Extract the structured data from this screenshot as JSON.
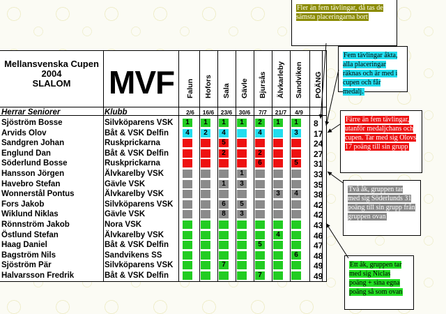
{
  "title_lines": [
    "Mellansvenska Cupen",
    "2004",
    "SLALOM"
  ],
  "logo": "MVF",
  "columns": [
    "Falun",
    "Hofors",
    "Sala",
    "Gävle",
    "Bjursås",
    "Älvkarleby",
    "Sandviken",
    "POÄNG"
  ],
  "subheader": {
    "class_label": "Herrar Seniorer",
    "club_label": "Klubb",
    "dates": [
      "2/6",
      "16/6",
      "23/6",
      "30/6",
      "7/7",
      "21/7",
      "4/9"
    ]
  },
  "colors": {
    "green": "#22cc22",
    "cyan": "#22ddee",
    "red": "#ee1111",
    "gray": "#8a8a8a",
    "olive": "#8b8b00",
    "yellow_bg": "#ffffcc"
  },
  "rows": [
    {
      "name": "Sjöström Bosse",
      "club": "Silvköparens VSK",
      "color": "green",
      "marks": [
        "1",
        "1",
        "1",
        "1",
        "2",
        "1",
        "1"
      ],
      "points": "8"
    },
    {
      "name": "Arvids Olov",
      "club": "Båt & VSK Delfin",
      "color": "cyan",
      "marks": [
        "4",
        "2",
        "4",
        "",
        "4",
        "",
        "3"
      ],
      "points": "17"
    },
    {
      "name": "Sandgren Johan",
      "club": "Ruskprickarna",
      "color": "red",
      "marks": [
        "",
        "",
        "5",
        "",
        "",
        "",
        ""
      ],
      "points": "24"
    },
    {
      "name": "Englund Dan",
      "club": "Båt & VSK Delfin",
      "color": "red",
      "marks": [
        "",
        "",
        "2",
        "",
        "2",
        "",
        ""
      ],
      "points": "27"
    },
    {
      "name": "Söderlund Bosse",
      "club": "Ruskprickarna",
      "color": "red",
      "marks": [
        "",
        "",
        "",
        "",
        "6",
        "",
        "5"
      ],
      "points": "31"
    },
    {
      "name": "Hansson Jörgen",
      "club": "Älvkarelby VSK",
      "color": "gray",
      "marks": [
        "",
        "",
        "",
        "1",
        "",
        "",
        ""
      ],
      "points": "33"
    },
    {
      "name": "Havebro Stefan",
      "club": "Gävle VSK",
      "color": "gray",
      "marks": [
        "",
        "",
        "1",
        "3",
        "",
        "",
        ""
      ],
      "points": "35"
    },
    {
      "name": "Wonnerstål Pontus",
      "club": "Älvkarelby VSK",
      "color": "gray",
      "marks": [
        "",
        "",
        "",
        "",
        "",
        "3",
        "4"
      ],
      "points": "38"
    },
    {
      "name": "Fors Jakob",
      "club": "Silvköparens VSK",
      "color": "gray",
      "marks": [
        "",
        "",
        "6",
        "5",
        "",
        "",
        ""
      ],
      "points": "42"
    },
    {
      "name": "Wiklund Niklas",
      "club": "Gävle VSK",
      "color": "gray",
      "marks": [
        "",
        "",
        "8",
        "3",
        "",
        "",
        ""
      ],
      "points": "42"
    },
    {
      "name": "Rönnström Jakob",
      "club": "Nora VSK",
      "color": "green",
      "marks": [
        "",
        "",
        "",
        "",
        "",
        "",
        ""
      ],
      "points": "43"
    },
    {
      "name": "Östlund Stefan",
      "club": "Älvkarelby VSK",
      "color": "green",
      "marks": [
        "",
        "",
        "",
        "",
        "",
        "4",
        ""
      ],
      "points": "46"
    },
    {
      "name": "Haag Daniel",
      "club": "Båt & VSK Delfin",
      "color": "green",
      "marks": [
        "",
        "",
        "",
        "",
        "5",
        "",
        ""
      ],
      "points": "47"
    },
    {
      "name": "Bagström Nils",
      "club": "Sandvikens SS",
      "color": "green",
      "marks": [
        "",
        "",
        "",
        "",
        "",
        "",
        "6"
      ],
      "points": "48"
    },
    {
      "name": "Sjöström Pär",
      "club": "Silvköparens VSK",
      "color": "green",
      "marks": [
        "",
        "",
        "7",
        "",
        "",
        "",
        ""
      ],
      "points": "49"
    },
    {
      "name": "Halvarsson Fredrik",
      "club": "Båt & VSK Delfin",
      "color": "green",
      "marks": [
        "",
        "",
        "",
        "",
        "7",
        "",
        ""
      ],
      "points": "49"
    }
  ],
  "callouts": [
    {
      "text": "Fler än fem tävlingar, då tas de sämsta placeringarna bort",
      "color": "olive"
    },
    {
      "text": "Fem tävlingar åkta, alla placeringar räknas och är med i cupen och får medalj.",
      "color": "cyan"
    },
    {
      "text": "Färre än fem tävlingar, utanför medaljchans och cupen. Tar med sig Olovs 17 poäng till sin grupp",
      "color": "red"
    },
    {
      "text": "Två åk, gruppen tar med sig Söderlunds 31 poäng till sin grupp från gruppen ovan",
      "color": "gray"
    },
    {
      "text": "Ett åk, gruppen tar med sig Niclas poäng + sina egna poäng så som ovan",
      "color": "green"
    }
  ]
}
